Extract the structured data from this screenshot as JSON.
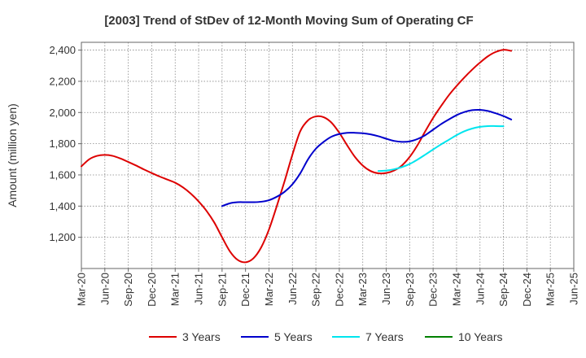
{
  "chart_data": {
    "type": "line",
    "title": "[2003]  Trend of StDev of 12-Month Moving Sum of Operating CF",
    "xlabel": "",
    "ylabel": "Amount (million yen)",
    "ylim": [
      1000,
      2450
    ],
    "yticks": [
      1200,
      1400,
      1600,
      1800,
      2000,
      2200,
      2400
    ],
    "ytick_labels": [
      "1,200",
      "1,400",
      "1,600",
      "1,800",
      "2,000",
      "2,200",
      "2,400"
    ],
    "xticks": [
      "Mar-20",
      "Jun-20",
      "Sep-20",
      "Dec-20",
      "Mar-21",
      "Jun-21",
      "Sep-21",
      "Dec-21",
      "Mar-22",
      "Jun-22",
      "Sep-22",
      "Dec-22",
      "Mar-23",
      "Jun-23",
      "Sep-23",
      "Dec-23",
      "Mar-24",
      "Jun-24",
      "Sep-24",
      "Dec-24",
      "Mar-25",
      "Jun-25"
    ],
    "grid": true,
    "legend_position": "bottom",
    "series": [
      {
        "name": "3 Years",
        "color": "#dd0000",
        "start_index": 0,
        "values": [
          1655,
          1700,
          1722,
          1728,
          1722,
          1705,
          1683,
          1660,
          1635,
          1612,
          1590,
          1570,
          1550,
          1520,
          1480,
          1430,
          1370,
          1295,
          1200,
          1110,
          1055,
          1040,
          1065,
          1135,
          1250,
          1400,
          1560,
          1730,
          1880,
          1950,
          1975,
          1970,
          1935,
          1870,
          1790,
          1715,
          1660,
          1625,
          1610,
          1612,
          1628,
          1660,
          1715,
          1790,
          1880,
          1965,
          2040,
          2110,
          2170,
          2225,
          2275,
          2320,
          2360,
          2388,
          2402,
          2395
        ]
      },
      {
        "name": "5 Years",
        "color": "#0000cc",
        "start_index": 18,
        "values": [
          1400,
          1418,
          1425,
          1425,
          1425,
          1428,
          1438,
          1460,
          1492,
          1540,
          1610,
          1700,
          1768,
          1812,
          1845,
          1862,
          1870,
          1870,
          1867,
          1860,
          1848,
          1832,
          1818,
          1812,
          1815,
          1830,
          1855,
          1890,
          1925,
          1955,
          1983,
          2003,
          2015,
          2017,
          2010,
          1995,
          1977,
          1955
        ]
      },
      {
        "name": "7 Years",
        "color": "#00e5ee",
        "start_index": 38,
        "values": [
          1625,
          1628,
          1636,
          1650,
          1670,
          1698,
          1730,
          1763,
          1795,
          1825,
          1855,
          1880,
          1897,
          1908,
          1913,
          1913,
          1912
        ]
      },
      {
        "name": "10 Years",
        "color": "#008000",
        "start_index": 0,
        "values": []
      }
    ]
  }
}
